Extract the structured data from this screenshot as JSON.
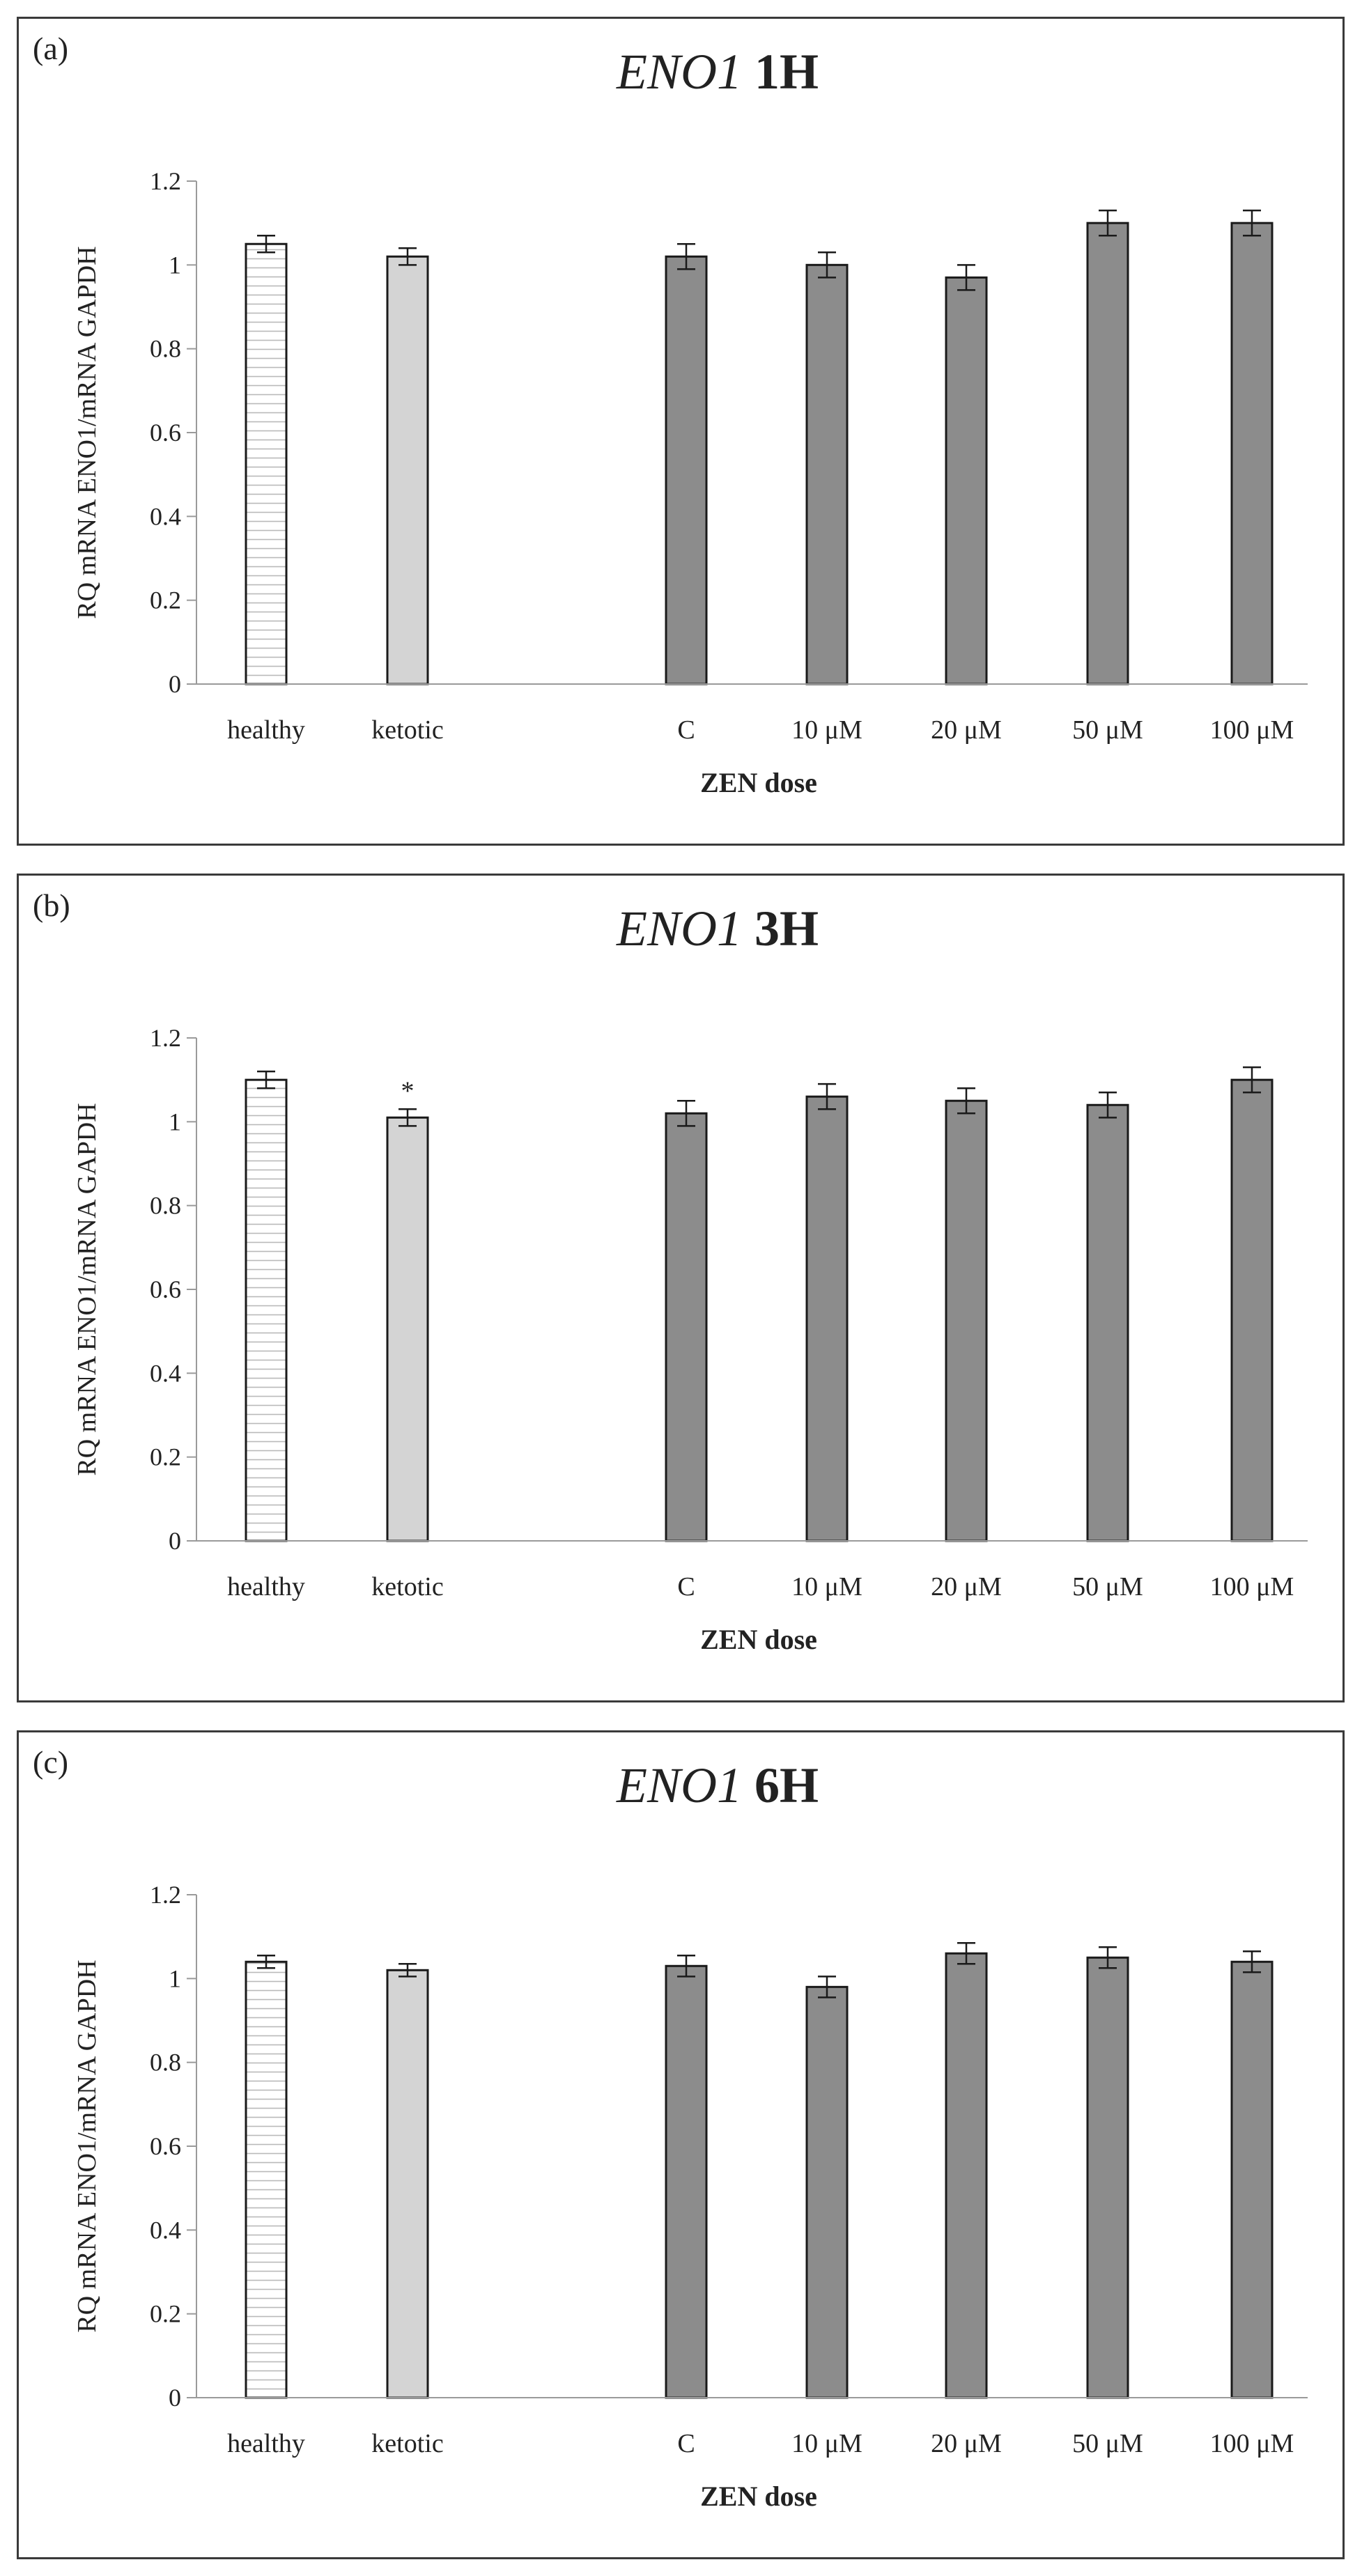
{
  "chart_data": [
    {
      "type": "bar",
      "panel_label": "(a)",
      "title_gene": "ENO1",
      "title_time": "1H",
      "xlabel": "ZEN dose",
      "ylabel": "RQ mRNA ENO1/mRNA GAPDH",
      "ylim": [
        0,
        1.2
      ],
      "yticks": [
        "0",
        "0.2",
        "0.4",
        "0.6",
        "0.8",
        "1",
        "1.2"
      ],
      "categories": [
        "healthy",
        "ketotic",
        "C",
        "10 μM",
        "20 μM",
        "50 μM",
        "100 μM"
      ],
      "values": [
        1.05,
        1.02,
        1.02,
        1.0,
        0.97,
        1.1,
        1.1
      ],
      "errors": [
        0.02,
        0.02,
        0.03,
        0.03,
        0.03,
        0.03,
        0.03
      ],
      "annotations": [
        "",
        "",
        "",
        "",
        "",
        "",
        ""
      ],
      "colors": {
        "healthy": "#ffffff",
        "ketotic": "#d4d4d4",
        "zen": "#8c8c8c"
      }
    },
    {
      "type": "bar",
      "panel_label": "(b)",
      "title_gene": "ENO1",
      "title_time": "3H",
      "xlabel": "ZEN dose",
      "ylabel": "RQ mRNA ENO1/mRNA GAPDH",
      "ylim": [
        0,
        1.2
      ],
      "yticks": [
        "0",
        "0.2",
        "0.4",
        "0.6",
        "0.8",
        "1",
        "1.2"
      ],
      "categories": [
        "healthy",
        "ketotic",
        "C",
        "10 μM",
        "20 μM",
        "50 μM",
        "100 μM"
      ],
      "values": [
        1.1,
        1.01,
        1.02,
        1.06,
        1.05,
        1.04,
        1.1
      ],
      "errors": [
        0.02,
        0.02,
        0.03,
        0.03,
        0.03,
        0.03,
        0.03
      ],
      "annotations": [
        "",
        "*",
        "",
        "",
        "",
        "",
        ""
      ],
      "colors": {
        "healthy": "#ffffff",
        "ketotic": "#d4d4d4",
        "zen": "#8c8c8c"
      }
    },
    {
      "type": "bar",
      "panel_label": "(c)",
      "title_gene": "ENO1",
      "title_time": "6H",
      "xlabel": "ZEN dose",
      "ylabel": "RQ mRNA ENO1/mRNA GAPDH",
      "ylim": [
        0,
        1.2
      ],
      "yticks": [
        "0",
        "0.2",
        "0.4",
        "0.6",
        "0.8",
        "1",
        "1.2"
      ],
      "categories": [
        "healthy",
        "ketotic",
        "C",
        "10 μM",
        "20 μM",
        "50 μM",
        "100 μM"
      ],
      "values": [
        1.04,
        1.02,
        1.03,
        0.98,
        1.06,
        1.05,
        1.04
      ],
      "errors": [
        0.015,
        0.015,
        0.025,
        0.025,
        0.025,
        0.025,
        0.025
      ],
      "annotations": [
        "",
        "",
        "",
        "",
        "",
        "",
        ""
      ],
      "colors": {
        "healthy": "#ffffff",
        "ketotic": "#d4d4d4",
        "zen": "#8c8c8c"
      }
    }
  ]
}
